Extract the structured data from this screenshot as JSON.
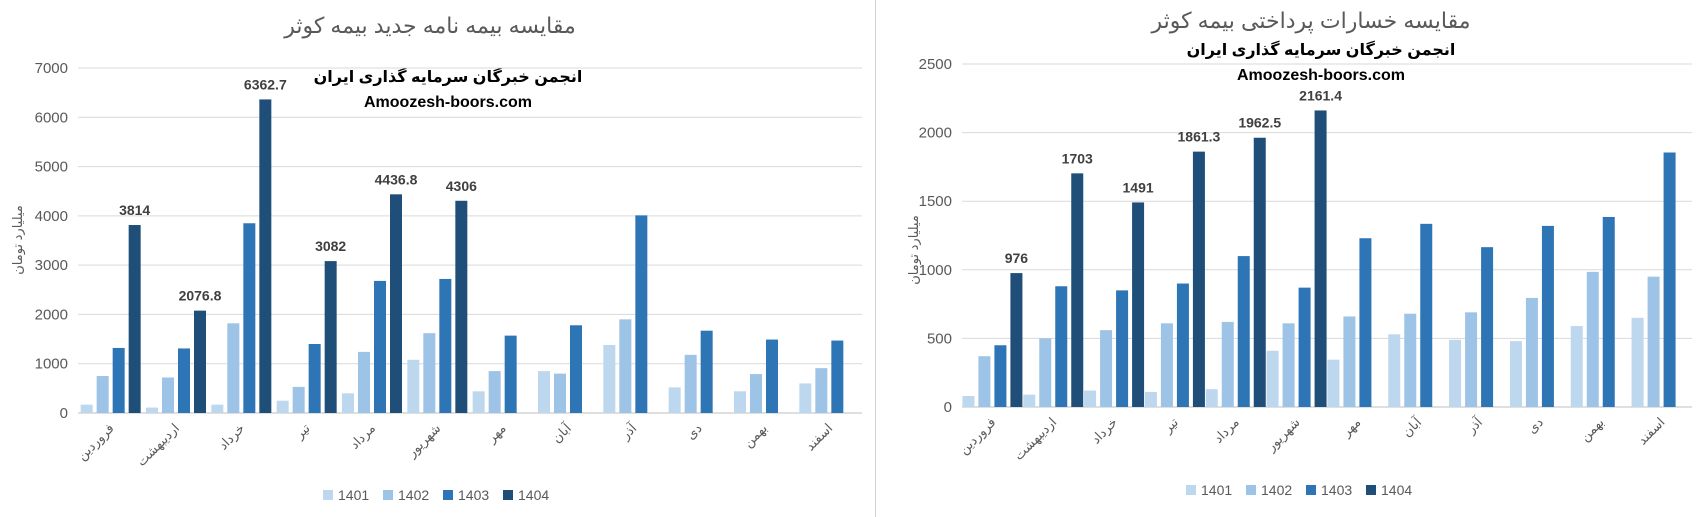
{
  "chart_data": [
    {
      "type": "bar",
      "title": "مقایسه بیمه نامه جدید بیمه کوثر",
      "watermark": [
        "انجمن خبرگان سرمایه گذاری ایران",
        "Amoozesh-boors.com"
      ],
      "ylabel": "میلیارد تومان",
      "ylim": [
        0,
        7000
      ],
      "yticks": [
        0,
        1000,
        2000,
        3000,
        4000,
        5000,
        6000,
        7000
      ],
      "categories": [
        "فروردین",
        "اردیبهشت",
        "خرداد",
        "تیر",
        "مرداد",
        "شهریور",
        "مهر",
        "آبان",
        "آذر",
        "دی",
        "بهمن",
        "اسفند"
      ],
      "series": [
        {
          "name": "1401",
          "color": "#bdd7ee",
          "values": [
            170,
            110,
            170,
            250,
            400,
            1080,
            440,
            850,
            1380,
            520,
            440,
            600
          ]
        },
        {
          "name": "1402",
          "color": "#9dc3e6",
          "values": [
            750,
            720,
            1820,
            530,
            1240,
            1620,
            850,
            800,
            1900,
            1180,
            790,
            910
          ]
        },
        {
          "name": "1403",
          "color": "#2e75b6",
          "values": [
            1320,
            1310,
            3850,
            1400,
            2680,
            2720,
            1570,
            1780,
            4010,
            1670,
            1490,
            1470
          ]
        },
        {
          "name": "1404",
          "color": "#1f4e79",
          "values": [
            3814,
            2076.8,
            6362.7,
            3082,
            4436.8,
            4306,
            null,
            null,
            null,
            null,
            null,
            null
          ]
        }
      ],
      "data_labels": [
        "3814",
        "2076.8",
        "6362.7",
        "3082",
        "4436.8",
        "4306"
      ],
      "grid": true,
      "legend": "bottom"
    },
    {
      "type": "bar",
      "title": "مقایسه خسارات پرداختی بیمه کوثر",
      "watermark": [
        "انجمن خبرگان سرمایه گذاری ایران",
        "Amoozesh-boors.com"
      ],
      "ylabel": "میلیارد تومان",
      "ylim": [
        0,
        2500
      ],
      "yticks": [
        0,
        500,
        1000,
        1500,
        2000,
        2500
      ],
      "categories": [
        "فروردین",
        "اردیبهشت",
        "خرداد",
        "تیر",
        "مرداد",
        "شهریور",
        "مهر",
        "آبان",
        "آذر",
        "دی",
        "بهمن",
        "اسفند"
      ],
      "series": [
        {
          "name": "1401",
          "color": "#bdd7ee",
          "values": [
            80,
            90,
            120,
            110,
            130,
            410,
            345,
            530,
            490,
            480,
            590,
            650
          ]
        },
        {
          "name": "1402",
          "color": "#9dc3e6",
          "values": [
            370,
            500,
            560,
            610,
            620,
            610,
            660,
            680,
            690,
            795,
            985,
            950
          ]
        },
        {
          "name": "1403",
          "color": "#2e75b6",
          "values": [
            450,
            880,
            850,
            900,
            1100,
            870,
            1230,
            1335,
            1165,
            1320,
            1385,
            1855
          ]
        },
        {
          "name": "1404",
          "color": "#1f4e79",
          "values": [
            976,
            1703,
            1491,
            1861.3,
            1962.5,
            2161.4,
            null,
            null,
            null,
            null,
            null,
            null
          ]
        }
      ],
      "data_labels": [
        "976",
        "1703",
        "1491",
        "1861.3",
        "1962.5",
        "2161.4"
      ],
      "grid": true,
      "legend": "bottom"
    }
  ]
}
